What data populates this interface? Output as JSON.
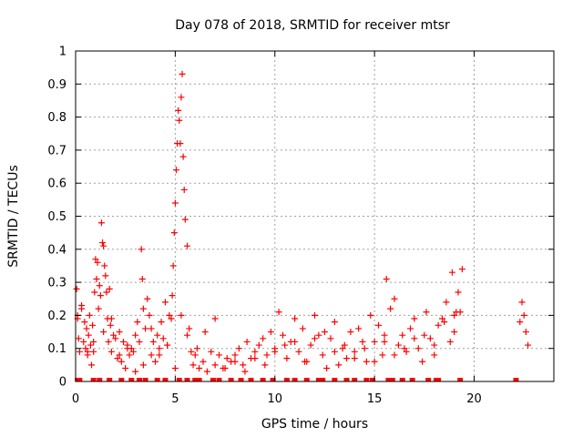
{
  "chart_data": {
    "type": "scatter",
    "title": "Day 078 of 2018, SRMTID for receiver mtsr",
    "xlabel": "GPS time / hours",
    "ylabel": "SRMTID / TECUs",
    "xlim": [
      0,
      24
    ],
    "ylim": [
      0,
      1
    ],
    "xticks": [
      0,
      5,
      10,
      15,
      20
    ],
    "yticks": [
      0,
      0.1,
      0.2,
      0.3,
      0.4,
      0.5,
      0.6,
      0.7,
      0.8,
      0.9,
      1
    ],
    "grid": true,
    "marker": "plus",
    "marker_color": "#ff0000",
    "series": [
      {
        "x": [
          0.05,
          0.1,
          0.15,
          0.2,
          0.3,
          0.4,
          0.45,
          0.5,
          0.55,
          0.6,
          0.65,
          0.7,
          0.75,
          0.8,
          0.85,
          0.9,
          0.95,
          1.0,
          1.05,
          1.1,
          1.15,
          1.2,
          1.25,
          1.3,
          1.35,
          1.4,
          1.45,
          1.5,
          1.55,
          1.6,
          1.65,
          1.7,
          1.75,
          1.8,
          1.9,
          2.0,
          2.1,
          2.2,
          2.3,
          2.4,
          2.5,
          2.6,
          2.7,
          2.8,
          2.9,
          3.0,
          3.1,
          3.2,
          3.3,
          3.35,
          3.4,
          3.5,
          3.6,
          3.7,
          3.8,
          3.9,
          4.0,
          4.1,
          4.2,
          4.3,
          4.4,
          4.5,
          4.6,
          4.7,
          4.8,
          4.85,
          4.9,
          4.95,
          5.0,
          5.05,
          5.1,
          5.15,
          5.2,
          5.25,
          5.3,
          5.35,
          5.4,
          5.45,
          5.5,
          5.6,
          5.7,
          5.8,
          5.9,
          6.0,
          6.2,
          6.4,
          6.6,
          6.8,
          7.0,
          7.2,
          7.4,
          7.6,
          7.8,
          8.0,
          8.2,
          8.4,
          8.6,
          8.8,
          9.0,
          9.2,
          9.4,
          9.6,
          9.8,
          10.0,
          10.2,
          10.4,
          10.6,
          10.8,
          11.0,
          11.2,
          11.4,
          11.6,
          11.8,
          12.0,
          12.2,
          12.4,
          12.6,
          12.8,
          13.0,
          13.2,
          13.4,
          13.6,
          13.8,
          14.0,
          14.2,
          14.4,
          14.6,
          14.8,
          15.0,
          15.2,
          15.4,
          15.5,
          15.6,
          15.8,
          16.0,
          16.2,
          16.4,
          16.6,
          16.8,
          17.0,
          17.2,
          17.4,
          17.6,
          17.8,
          18.0,
          18.2,
          18.4,
          18.6,
          18.8,
          18.9,
          19.0,
          19.1,
          19.2,
          19.4,
          22.3,
          22.4,
          22.5,
          22.6,
          22.7,
          0.1,
          0.3,
          0.6,
          0.9,
          1.4,
          1.8,
          2.2,
          2.6,
          3.0,
          3.4,
          3.8,
          4.2,
          4.6,
          5.0,
          5.3,
          5.6,
          6.1,
          6.5,
          7.0,
          7.5,
          8.0,
          8.5,
          9.0,
          9.5,
          10.0,
          10.5,
          11.0,
          11.5,
          12.0,
          12.5,
          13.0,
          13.5,
          14.0,
          14.5,
          15.0,
          15.5,
          16.0,
          16.5,
          17.0,
          17.5,
          18.0,
          18.5,
          19.0,
          19.3
        ],
        "y": [
          0.28,
          0.2,
          0.13,
          0.09,
          0.23,
          0.12,
          0.18,
          0.1,
          0.16,
          0.08,
          0.14,
          0.2,
          0.11,
          0.05,
          0.17,
          0.09,
          0.27,
          0.37,
          0.31,
          0.36,
          0.22,
          0.29,
          0.26,
          0.48,
          0.42,
          0.41,
          0.35,
          0.32,
          0.27,
          0.19,
          0.12,
          0.28,
          0.17,
          0.09,
          0.14,
          0.13,
          0.07,
          0.15,
          0.06,
          0.12,
          0.04,
          0.11,
          0.08,
          0.1,
          0.09,
          0.03,
          0.18,
          0.12,
          0.4,
          0.31,
          0.22,
          0.16,
          0.25,
          0.2,
          0.08,
          0.12,
          0.06,
          0.14,
          0.1,
          0.18,
          0.13,
          0.24,
          0.11,
          0.2,
          0.19,
          0.26,
          0.35,
          0.45,
          0.54,
          0.64,
          0.72,
          0.82,
          0.79,
          0.72,
          0.86,
          0.93,
          0.68,
          0.58,
          0.49,
          0.41,
          0.16,
          0.09,
          0.05,
          0.08,
          0.04,
          0.06,
          0.03,
          0.09,
          0.05,
          0.08,
          0.04,
          0.07,
          0.06,
          0.08,
          0.1,
          0.05,
          0.12,
          0.07,
          0.09,
          0.11,
          0.13,
          0.08,
          0.15,
          0.1,
          0.21,
          0.14,
          0.07,
          0.12,
          0.19,
          0.09,
          0.16,
          0.06,
          0.11,
          0.2,
          0.14,
          0.08,
          0.04,
          0.13,
          0.18,
          0.05,
          0.1,
          0.07,
          0.15,
          0.09,
          0.16,
          0.12,
          0.06,
          0.2,
          0.12,
          0.17,
          0.08,
          0.14,
          0.31,
          0.22,
          0.25,
          0.11,
          0.14,
          0.09,
          0.16,
          0.19,
          0.1,
          0.06,
          0.21,
          0.13,
          0.08,
          0.17,
          0.19,
          0.24,
          0.12,
          0.33,
          0.15,
          0.21,
          0.27,
          0.34,
          0.18,
          0.24,
          0.2,
          0.15,
          0.11,
          0.19,
          0.22,
          0.09,
          0.12,
          0.15,
          0.19,
          0.08,
          0.1,
          0.14,
          0.05,
          0.16,
          0.08,
          0.11,
          0.04,
          0.2,
          0.14,
          0.1,
          0.15,
          0.19,
          0.04,
          0.06,
          0.03,
          0.07,
          0.05,
          0.09,
          0.11,
          0.12,
          0.06,
          0.13,
          0.15,
          0.09,
          0.11,
          0.07,
          0.1,
          0.06,
          0.12,
          0.08,
          0.1,
          0.13,
          0.14,
          0.11,
          0.18,
          0.2,
          0.21
        ],
        "low_markers_x": [
          0.1,
          0.2,
          0.9,
          1.2,
          1.7,
          2.3,
          2.8,
          3.2,
          3.5,
          4.1,
          4.5,
          5.2,
          5.6,
          6.0,
          6.2,
          6.9,
          7.2,
          7.8,
          8.3,
          8.8,
          9.4,
          9.9,
          10.6,
          11.0,
          11.6,
          12.2,
          12.4,
          13.0,
          13.6,
          14.0,
          14.6,
          14.9,
          15.7,
          15.9,
          16.4,
          16.9,
          17.7,
          18.1,
          18.2,
          19.3,
          22.1
        ]
      }
    ]
  }
}
